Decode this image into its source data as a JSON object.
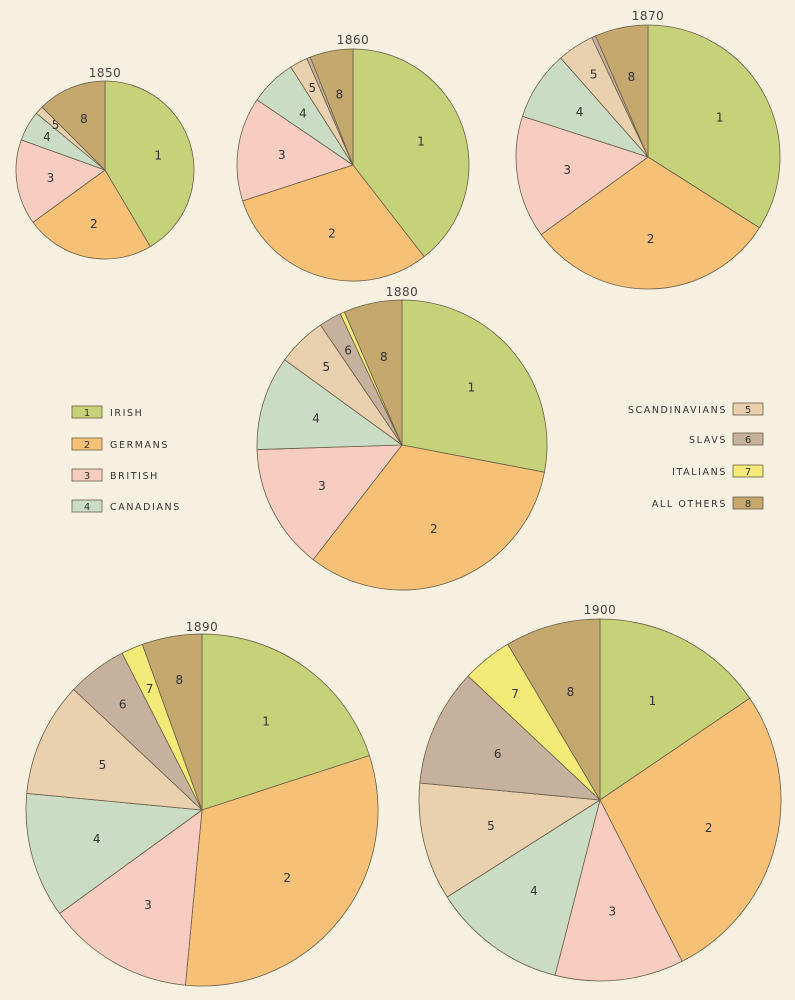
{
  "legend": [
    {
      "key": "1",
      "label": "IRISH",
      "color": "#c6d27a"
    },
    {
      "key": "2",
      "label": "GERMANS",
      "color": "#f7c077"
    },
    {
      "key": "3",
      "label": "BRITISH",
      "color": "#f6cdc0"
    },
    {
      "key": "4",
      "label": "CANADIANS",
      "color": "#cbdcc4"
    },
    {
      "key": "5",
      "label": "SCANDINAVIANS",
      "color": "#e9d0af"
    },
    {
      "key": "6",
      "label": "SLAVS",
      "color": "#c5b19c"
    },
    {
      "key": "7",
      "label": "ITALIANS",
      "color": "#f3ea77"
    },
    {
      "key": "8",
      "label": "ALL OTHERS",
      "color": "#c4a86e"
    }
  ],
  "chart_data": [
    {
      "type": "pie",
      "title": "1850",
      "categories": [
        "1",
        "2",
        "3",
        "4",
        "5",
        "6",
        "7",
        "8"
      ],
      "values": [
        41.5,
        23.5,
        15.5,
        5.5,
        1.5,
        0,
        0,
        12.5
      ]
    },
    {
      "type": "pie",
      "title": "1860",
      "categories": [
        "1",
        "2",
        "3",
        "4",
        "5",
        "6",
        "7",
        "8"
      ],
      "values": [
        39.5,
        30.5,
        14.5,
        6.5,
        2.5,
        0.5,
        0,
        6
      ]
    },
    {
      "type": "pie",
      "title": "1870",
      "categories": [
        "1",
        "2",
        "3",
        "4",
        "5",
        "6",
        "7",
        "8"
      ],
      "values": [
        34,
        31,
        15,
        8.5,
        4.5,
        0.5,
        0,
        6.5
      ]
    },
    {
      "type": "pie",
      "title": "1880",
      "categories": [
        "1",
        "2",
        "3",
        "4",
        "5",
        "6",
        "7",
        "8"
      ],
      "values": [
        28,
        32.5,
        14,
        10.5,
        5.5,
        2.5,
        0.5,
        6.5
      ]
    },
    {
      "type": "pie",
      "title": "1890",
      "categories": [
        "1",
        "2",
        "3",
        "4",
        "5",
        "6",
        "7",
        "8"
      ],
      "values": [
        20,
        31.5,
        13.5,
        11.5,
        10.5,
        5.5,
        2,
        5.5
      ]
    },
    {
      "type": "pie",
      "title": "1900",
      "categories": [
        "1",
        "2",
        "3",
        "4",
        "5",
        "6",
        "7",
        "8"
      ],
      "values": [
        15.5,
        27,
        11.5,
        12,
        10.5,
        10.5,
        4.5,
        8.5
      ]
    }
  ]
}
